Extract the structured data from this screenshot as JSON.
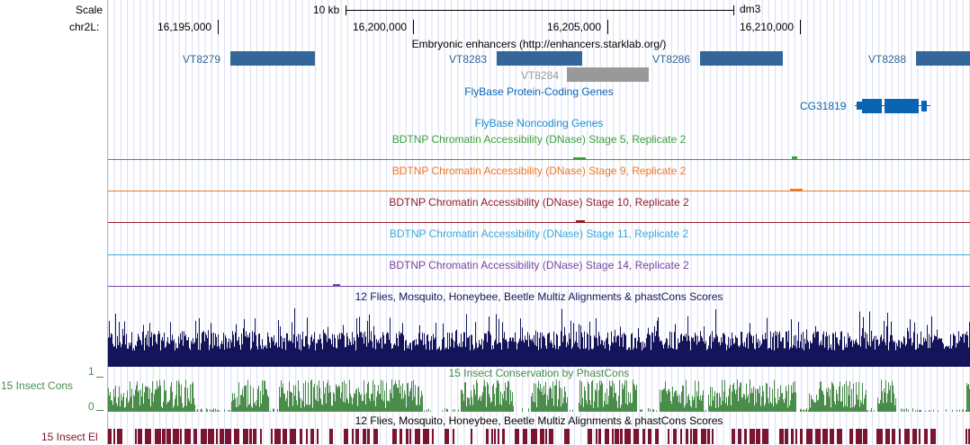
{
  "ruler": {
    "scale_label": "Scale",
    "scale_value": "10 kb",
    "assembly": "dm3",
    "chrom_label": "chr2L:",
    "positions": [
      "16,195,000",
      "16,200,000",
      "16,205,000",
      "16,210,000"
    ]
  },
  "enhancers": {
    "title": "Embryonic enhancers (http://enhancers.starklab.org/)",
    "features": [
      {
        "label": "VT8279",
        "color": "#336699"
      },
      {
        "label": "VT8283",
        "color": "#336699"
      },
      {
        "label": "VT8284",
        "color": "#999999"
      },
      {
        "label": "VT8286",
        "color": "#336699"
      },
      {
        "label": "VT8288",
        "color": "#336699"
      }
    ]
  },
  "protein_genes": {
    "title": "FlyBase Protein-Coding Genes",
    "gene": "CG31819",
    "color": "#0a64b4"
  },
  "noncoding": {
    "title": "FlyBase Noncoding Genes"
  },
  "dnase_tracks": [
    {
      "title": "BDTNP Chromatin Accessibility (DNase) Stage 5, Replicate 2",
      "color": "#3ca03c"
    },
    {
      "title": "BDTNP Chromatin Accessibility (DNase) Stage 9, Replicate 2",
      "color": "#f07820"
    },
    {
      "title": "BDTNP Chromatin Accessibility (DNase) Stage 10, Replicate 2",
      "color": "#961e28"
    },
    {
      "title": "BDTNP Chromatin Accessibility (DNase) Stage 11, Replicate 2",
      "color": "#3caadc"
    },
    {
      "title": "BDTNP Chromatin Accessibility (DNase) Stage 14, Replicate 2",
      "color": "#7846a0"
    }
  ],
  "multiz": {
    "title": "12 Flies, Mosquito, Honeybee, Beetle Multiz Alignments & phastCons Scores",
    "color": "#14145a"
  },
  "insect_cons": {
    "title": "15 Insect Conservation by PhastCons",
    "side_label": "15 Insect Cons",
    "axis_max": "1",
    "axis_min": "0",
    "color": "#4a8c4a"
  },
  "insect_el": {
    "title": "12 Flies, Mosquito, Honeybee, Beetle Multiz Alignments & phastCons Scores",
    "side_label": "15 Insect El",
    "color": "#7a1430"
  }
}
